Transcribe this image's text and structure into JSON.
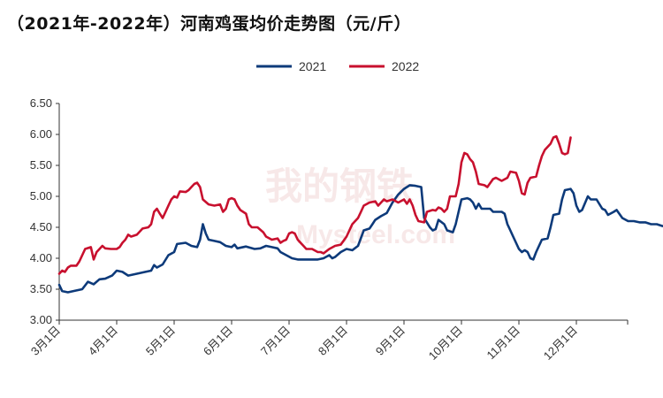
{
  "chart_data": {
    "type": "line",
    "title": "（2021年-2022年）河南鸡蛋均价走势图（元/斤）",
    "xlabel": "",
    "ylabel": "",
    "ylim": [
      3.0,
      6.5
    ],
    "y_ticks": [
      "3.00",
      "3.50",
      "4.00",
      "4.50",
      "5.00",
      "5.50",
      "6.00",
      "6.50"
    ],
    "x_ticks": [
      "3月1日",
      "4月1日",
      "5月1日",
      "6月1日",
      "7月1日",
      "8月1日",
      "9月1日",
      "10月1日",
      "11月1日",
      "12月1日"
    ],
    "x_unit": "month index from 3月1日 (0 = 3月1日, 10 = 次年1月1日)",
    "legend_position": "top-center",
    "grid": false,
    "series": [
      {
        "name": "2021",
        "color": "#0d3a7a",
        "points": [
          [
            0.0,
            3.57
          ],
          [
            0.05,
            3.47
          ],
          [
            0.15,
            3.45
          ],
          [
            0.3,
            3.48
          ],
          [
            0.4,
            3.5
          ],
          [
            0.5,
            3.62
          ],
          [
            0.6,
            3.58
          ],
          [
            0.7,
            3.66
          ],
          [
            0.8,
            3.67
          ],
          [
            0.92,
            3.72
          ],
          [
            1.0,
            3.8
          ],
          [
            1.1,
            3.78
          ],
          [
            1.2,
            3.72
          ],
          [
            1.35,
            3.75
          ],
          [
            1.5,
            3.78
          ],
          [
            1.6,
            3.8
          ],
          [
            1.65,
            3.89
          ],
          [
            1.7,
            3.85
          ],
          [
            1.8,
            3.9
          ],
          [
            1.9,
            4.05
          ],
          [
            2.0,
            4.1
          ],
          [
            2.05,
            4.23
          ],
          [
            2.2,
            4.25
          ],
          [
            2.3,
            4.2
          ],
          [
            2.4,
            4.18
          ],
          [
            2.45,
            4.3
          ],
          [
            2.5,
            4.55
          ],
          [
            2.55,
            4.4
          ],
          [
            2.6,
            4.3
          ],
          [
            2.7,
            4.28
          ],
          [
            2.8,
            4.26
          ],
          [
            2.9,
            4.2
          ],
          [
            3.0,
            4.18
          ],
          [
            3.05,
            4.22
          ],
          [
            3.1,
            4.16
          ],
          [
            3.25,
            4.19
          ],
          [
            3.4,
            4.15
          ],
          [
            3.5,
            4.16
          ],
          [
            3.6,
            4.2
          ],
          [
            3.7,
            4.18
          ],
          [
            3.8,
            4.16
          ],
          [
            3.85,
            4.1
          ],
          [
            3.95,
            4.05
          ],
          [
            4.05,
            4.0
          ],
          [
            4.15,
            3.98
          ],
          [
            4.5,
            3.98
          ],
          [
            4.6,
            4.0
          ],
          [
            4.7,
            4.05
          ],
          [
            4.75,
            4.0
          ],
          [
            4.8,
            4.02
          ],
          [
            4.9,
            4.1
          ],
          [
            5.0,
            4.15
          ],
          [
            5.1,
            4.13
          ],
          [
            5.2,
            4.2
          ],
          [
            5.3,
            4.45
          ],
          [
            5.4,
            4.48
          ],
          [
            5.45,
            4.55
          ],
          [
            5.5,
            4.62
          ],
          [
            5.6,
            4.68
          ],
          [
            5.7,
            4.73
          ],
          [
            5.8,
            4.9
          ],
          [
            5.9,
            5.03
          ],
          [
            6.0,
            5.12
          ],
          [
            6.05,
            5.15
          ],
          [
            6.1,
            5.18
          ],
          [
            6.2,
            5.17
          ],
          [
            6.3,
            5.15
          ],
          [
            6.35,
            4.65
          ],
          [
            6.45,
            4.5
          ],
          [
            6.5,
            4.45
          ],
          [
            6.55,
            4.47
          ],
          [
            6.6,
            4.62
          ],
          [
            6.7,
            4.55
          ],
          [
            6.75,
            4.45
          ],
          [
            6.85,
            4.42
          ],
          [
            6.9,
            4.55
          ],
          [
            7.0,
            4.95
          ],
          [
            7.1,
            4.97
          ],
          [
            7.15,
            4.95
          ],
          [
            7.2,
            4.9
          ],
          [
            7.25,
            4.8
          ],
          [
            7.3,
            4.88
          ],
          [
            7.35,
            4.8
          ],
          [
            7.5,
            4.8
          ],
          [
            7.55,
            4.75
          ],
          [
            7.7,
            4.75
          ],
          [
            7.75,
            4.72
          ],
          [
            7.8,
            4.55
          ],
          [
            7.85,
            4.45
          ],
          [
            7.9,
            4.35
          ],
          [
            8.0,
            4.15
          ],
          [
            8.05,
            4.1
          ],
          [
            8.1,
            4.13
          ],
          [
            8.15,
            4.1
          ],
          [
            8.2,
            4.0
          ],
          [
            8.25,
            3.98
          ],
          [
            8.3,
            4.1
          ],
          [
            8.4,
            4.3
          ],
          [
            8.5,
            4.32
          ],
          [
            8.55,
            4.5
          ],
          [
            8.6,
            4.7
          ],
          [
            8.7,
            4.72
          ],
          [
            8.75,
            4.95
          ],
          [
            8.8,
            5.1
          ],
          [
            8.9,
            5.12
          ],
          [
            8.95,
            5.05
          ],
          [
            9.0,
            4.85
          ],
          [
            9.05,
            4.75
          ],
          [
            9.1,
            4.78
          ],
          [
            9.2,
            5.0
          ],
          [
            9.25,
            4.95
          ],
          [
            9.35,
            4.95
          ],
          [
            9.45,
            4.8
          ],
          [
            9.5,
            4.78
          ],
          [
            9.55,
            4.7
          ],
          [
            9.65,
            4.75
          ],
          [
            9.7,
            4.78
          ],
          [
            9.8,
            4.65
          ],
          [
            9.9,
            4.6
          ],
          [
            10.0,
            4.6
          ],
          [
            10.1,
            4.58
          ],
          [
            10.2,
            4.58
          ],
          [
            10.3,
            4.55
          ],
          [
            10.4,
            4.55
          ],
          [
            10.5,
            4.52
          ],
          [
            10.7,
            4.52
          ],
          [
            10.8,
            4.5
          ],
          [
            10.9,
            4.48
          ],
          [
            11.0,
            4.4
          ],
          [
            11.1,
            4.35
          ]
        ]
      },
      {
        "name": "2022",
        "color": "#c8102e",
        "points": [
          [
            0.0,
            3.75
          ],
          [
            0.05,
            3.8
          ],
          [
            0.1,
            3.78
          ],
          [
            0.15,
            3.85
          ],
          [
            0.2,
            3.88
          ],
          [
            0.3,
            3.88
          ],
          [
            0.35,
            3.95
          ],
          [
            0.45,
            4.15
          ],
          [
            0.55,
            4.18
          ],
          [
            0.6,
            3.98
          ],
          [
            0.65,
            4.1
          ],
          [
            0.75,
            4.2
          ],
          [
            0.8,
            4.16
          ],
          [
            0.9,
            4.15
          ],
          [
            1.0,
            4.15
          ],
          [
            1.05,
            4.18
          ],
          [
            1.1,
            4.25
          ],
          [
            1.15,
            4.3
          ],
          [
            1.2,
            4.38
          ],
          [
            1.25,
            4.35
          ],
          [
            1.35,
            4.38
          ],
          [
            1.45,
            4.48
          ],
          [
            1.55,
            4.5
          ],
          [
            1.6,
            4.55
          ],
          [
            1.65,
            4.75
          ],
          [
            1.7,
            4.8
          ],
          [
            1.75,
            4.72
          ],
          [
            1.8,
            4.65
          ],
          [
            1.85,
            4.75
          ],
          [
            1.9,
            4.85
          ],
          [
            1.95,
            4.95
          ],
          [
            2.0,
            5.0
          ],
          [
            2.05,
            4.98
          ],
          [
            2.1,
            5.08
          ],
          [
            2.2,
            5.07
          ],
          [
            2.25,
            5.1
          ],
          [
            2.3,
            5.15
          ],
          [
            2.35,
            5.2
          ],
          [
            2.4,
            5.22
          ],
          [
            2.45,
            5.15
          ],
          [
            2.5,
            4.95
          ],
          [
            2.6,
            4.87
          ],
          [
            2.7,
            4.85
          ],
          [
            2.8,
            4.87
          ],
          [
            2.85,
            4.75
          ],
          [
            2.9,
            4.8
          ],
          [
            2.95,
            4.95
          ],
          [
            3.0,
            4.97
          ],
          [
            3.05,
            4.95
          ],
          [
            3.1,
            4.85
          ],
          [
            3.15,
            4.78
          ],
          [
            3.2,
            4.75
          ],
          [
            3.25,
            4.72
          ],
          [
            3.3,
            4.55
          ],
          [
            3.35,
            4.5
          ],
          [
            3.45,
            4.5
          ],
          [
            3.55,
            4.42
          ],
          [
            3.6,
            4.35
          ],
          [
            3.7,
            4.3
          ],
          [
            3.8,
            4.32
          ],
          [
            3.85,
            4.25
          ],
          [
            3.9,
            4.28
          ],
          [
            3.95,
            4.3
          ],
          [
            4.0,
            4.4
          ],
          [
            4.05,
            4.42
          ],
          [
            4.1,
            4.4
          ],
          [
            4.15,
            4.3
          ],
          [
            4.2,
            4.25
          ],
          [
            4.25,
            4.2
          ],
          [
            4.3,
            4.15
          ],
          [
            4.4,
            4.15
          ],
          [
            4.5,
            4.1
          ],
          [
            4.55,
            4.1
          ],
          [
            4.6,
            4.08
          ],
          [
            4.7,
            4.15
          ],
          [
            4.8,
            4.2
          ],
          [
            4.9,
            4.22
          ],
          [
            5.0,
            4.35
          ],
          [
            5.1,
            4.55
          ],
          [
            5.2,
            4.65
          ],
          [
            5.25,
            4.75
          ],
          [
            5.3,
            4.85
          ],
          [
            5.4,
            4.9
          ],
          [
            5.5,
            4.92
          ],
          [
            5.55,
            4.85
          ],
          [
            5.65,
            4.95
          ],
          [
            5.7,
            4.92
          ],
          [
            5.8,
            4.95
          ],
          [
            5.9,
            4.9
          ],
          [
            6.0,
            4.95
          ],
          [
            6.05,
            4.88
          ],
          [
            6.1,
            4.95
          ],
          [
            6.15,
            4.85
          ],
          [
            6.2,
            4.7
          ],
          [
            6.25,
            4.6
          ],
          [
            6.35,
            4.58
          ],
          [
            6.4,
            4.75
          ],
          [
            6.5,
            4.78
          ],
          [
            6.55,
            4.77
          ],
          [
            6.6,
            4.82
          ],
          [
            6.65,
            4.8
          ],
          [
            6.7,
            4.75
          ],
          [
            6.75,
            4.8
          ],
          [
            6.8,
            5.0
          ],
          [
            6.9,
            5.0
          ],
          [
            6.95,
            5.2
          ],
          [
            7.0,
            5.55
          ],
          [
            7.05,
            5.7
          ],
          [
            7.1,
            5.68
          ],
          [
            7.15,
            5.6
          ],
          [
            7.2,
            5.55
          ],
          [
            7.25,
            5.4
          ],
          [
            7.3,
            5.2
          ],
          [
            7.4,
            5.18
          ],
          [
            7.45,
            5.15
          ],
          [
            7.55,
            5.28
          ],
          [
            7.6,
            5.3
          ],
          [
            7.7,
            5.25
          ],
          [
            7.8,
            5.3
          ],
          [
            7.85,
            5.4
          ],
          [
            7.95,
            5.38
          ],
          [
            8.0,
            5.25
          ],
          [
            8.05,
            5.05
          ],
          [
            8.1,
            5.03
          ],
          [
            8.15,
            5.22
          ],
          [
            8.2,
            5.3
          ],
          [
            8.3,
            5.32
          ],
          [
            8.35,
            5.5
          ],
          [
            8.4,
            5.65
          ],
          [
            8.45,
            5.75
          ],
          [
            8.55,
            5.85
          ],
          [
            8.6,
            5.95
          ],
          [
            8.65,
            5.97
          ],
          [
            8.7,
            5.85
          ],
          [
            8.75,
            5.7
          ],
          [
            8.8,
            5.68
          ],
          [
            8.85,
            5.7
          ],
          [
            8.9,
            5.95
          ]
        ]
      }
    ]
  }
}
